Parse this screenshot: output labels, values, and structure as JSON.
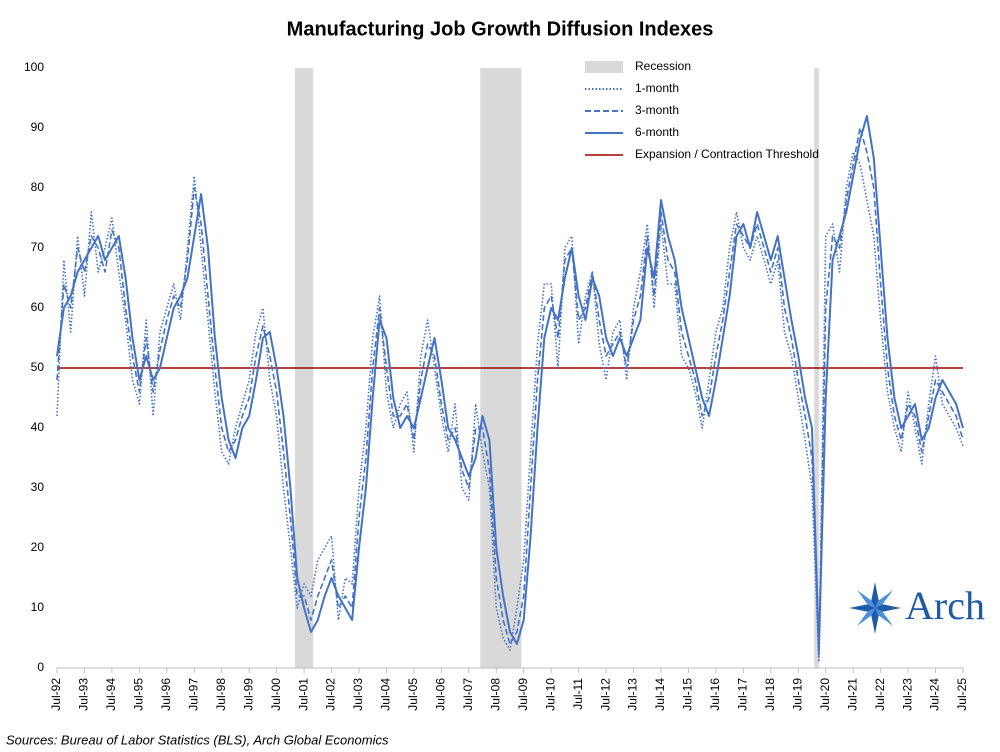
{
  "chart_data": {
    "type": "line",
    "title": "Manufacturing Job Growth Diffusion Indexes",
    "source": "Sources: Bureau of Labor Statistics (BLS), Arch Global Economics",
    "logo": "Arch",
    "categories": [
      "Jul-92",
      null,
      null,
      null,
      "Jul-93",
      null,
      null,
      null,
      "Jul-94",
      null,
      null,
      null,
      "Jul-95",
      null,
      null,
      null,
      "Jul-96",
      null,
      null,
      null,
      "Jul-97",
      null,
      null,
      null,
      "Jul-98",
      null,
      null,
      null,
      "Jul-99",
      null,
      null,
      null,
      "Jul-00",
      null,
      null,
      null,
      "Jul-01",
      null,
      null,
      null,
      "Jul-02",
      null,
      null,
      null,
      "Jul-03",
      null,
      null,
      null,
      "Jul-04",
      null,
      null,
      null,
      "Jul-05",
      null,
      null,
      null,
      "Jul-06",
      null,
      null,
      null,
      "Jul-07",
      null,
      null,
      null,
      "Jul-08",
      null,
      null,
      null,
      "Jul-09",
      null,
      null,
      null,
      "Jul-10",
      null,
      null,
      null,
      "Jul-11",
      null,
      null,
      null,
      "Jul-12",
      null,
      null,
      null,
      "Jul-13",
      null,
      null,
      null,
      "Jul-14",
      null,
      null,
      null,
      "Jul-15",
      null,
      null,
      null,
      "Jul-16",
      null,
      null,
      null,
      "Jul-17",
      null,
      null,
      null,
      "Jul-18",
      null,
      null,
      null,
      "Jul-19",
      null,
      null,
      null,
      "Jul-20",
      null,
      null,
      null,
      "Jul-21",
      null,
      null,
      null,
      "Jul-22",
      null,
      null,
      null,
      "Jul-23",
      null,
      null,
      null,
      "Jul-24",
      null,
      null,
      null,
      "Jul-25"
    ],
    "series": [
      {
        "name": "1-month",
        "color": "#4472c4",
        "dash": "dotted",
        "values": [
          42,
          68,
          56,
          72,
          62,
          76,
          66,
          70,
          75,
          66,
          58,
          48,
          44,
          58,
          42,
          56,
          60,
          64,
          58,
          70,
          82,
          70,
          58,
          46,
          36,
          34,
          40,
          44,
          48,
          56,
          60,
          48,
          42,
          30,
          20,
          10,
          14,
          12,
          18,
          20,
          22,
          8,
          15,
          14,
          30,
          40,
          55,
          62,
          46,
          40,
          44,
          46,
          36,
          52,
          58,
          50,
          42,
          36,
          44,
          30,
          28,
          44,
          36,
          30,
          10,
          5,
          3,
          10,
          18,
          36,
          54,
          64,
          64,
          50,
          70,
          72,
          54,
          62,
          66,
          54,
          48,
          56,
          58,
          48,
          60,
          66,
          74,
          60,
          74,
          64,
          64,
          52,
          50,
          46,
          40,
          48,
          56,
          60,
          70,
          76,
          70,
          68,
          72,
          68,
          64,
          68,
          56,
          52,
          45,
          38,
          30,
          1,
          72,
          74,
          66,
          80,
          86,
          84,
          78,
          72,
          58,
          46,
          40,
          36,
          46,
          40,
          34,
          44,
          52,
          44,
          42,
          40,
          37
        ]
      },
      {
        "name": "3-month",
        "color": "#4472c4",
        "dash": "dashed",
        "values": [
          48,
          64,
          60,
          70,
          66,
          72,
          70,
          66,
          73,
          70,
          60,
          52,
          46,
          55,
          46,
          53,
          58,
          62,
          60,
          68,
          80,
          74,
          62,
          50,
          40,
          36,
          38,
          42,
          45,
          52,
          57,
          52,
          46,
          36,
          25,
          12,
          12,
          8,
          12,
          15,
          18,
          10,
          12,
          10,
          25,
          35,
          50,
          60,
          50,
          42,
          42,
          44,
          38,
          48,
          54,
          52,
          44,
          38,
          40,
          33,
          30,
          40,
          40,
          33,
          15,
          8,
          4,
          6,
          12,
          30,
          48,
          60,
          62,
          55,
          68,
          70,
          58,
          60,
          66,
          58,
          52,
          54,
          56,
          50,
          58,
          62,
          72,
          62,
          76,
          68,
          66,
          56,
          52,
          48,
          42,
          45,
          52,
          58,
          66,
          74,
          72,
          70,
          74,
          70,
          66,
          70,
          60,
          55,
          48,
          42,
          35,
          2,
          60,
          72,
          70,
          78,
          84,
          90,
          86,
          80,
          64,
          50,
          42,
          38,
          44,
          42,
          36,
          42,
          48,
          46,
          44,
          42,
          38
        ]
      },
      {
        "name": "6-month",
        "color": "#4472c4",
        "dash": "solid",
        "values": [
          52,
          60,
          62,
          66,
          68,
          70,
          72,
          68,
          70,
          72,
          65,
          55,
          48,
          52,
          48,
          50,
          55,
          60,
          62,
          65,
          72,
          79,
          70,
          55,
          45,
          38,
          35,
          40,
          42,
          48,
          55,
          56,
          50,
          42,
          30,
          15,
          10,
          6,
          8,
          12,
          15,
          12,
          10,
          8,
          20,
          30,
          45,
          58,
          55,
          45,
          40,
          42,
          40,
          45,
          50,
          55,
          48,
          40,
          38,
          35,
          32,
          35,
          42,
          38,
          20,
          12,
          6,
          4,
          8,
          22,
          40,
          55,
          60,
          58,
          65,
          70,
          62,
          58,
          65,
          62,
          55,
          52,
          55,
          52,
          55,
          58,
          70,
          65,
          78,
          72,
          68,
          60,
          55,
          50,
          45,
          42,
          48,
          55,
          62,
          72,
          74,
          70,
          76,
          72,
          68,
          72,
          65,
          58,
          52,
          45,
          40,
          3,
          45,
          68,
          72,
          76,
          82,
          88,
          92,
          85,
          70,
          55,
          45,
          40,
          42,
          44,
          38,
          40,
          45,
          48,
          46,
          44,
          40
        ]
      }
    ],
    "recessions": {
      "name": "Recession",
      "color": "#d9d9d9",
      "ranges": [
        [
          34.67,
          37.33
        ],
        [
          61.67,
          67.67
        ],
        [
          110.33,
          111
        ]
      ]
    },
    "threshold": {
      "name": "Expansion / Contraction Threshold",
      "value": 50,
      "color": "#a00000"
    },
    "ylim": [
      0,
      100
    ],
    "yticks": [
      0,
      10,
      20,
      30,
      40,
      50,
      60,
      70,
      80,
      90,
      100
    ],
    "grid": false,
    "legend": "top-right"
  }
}
